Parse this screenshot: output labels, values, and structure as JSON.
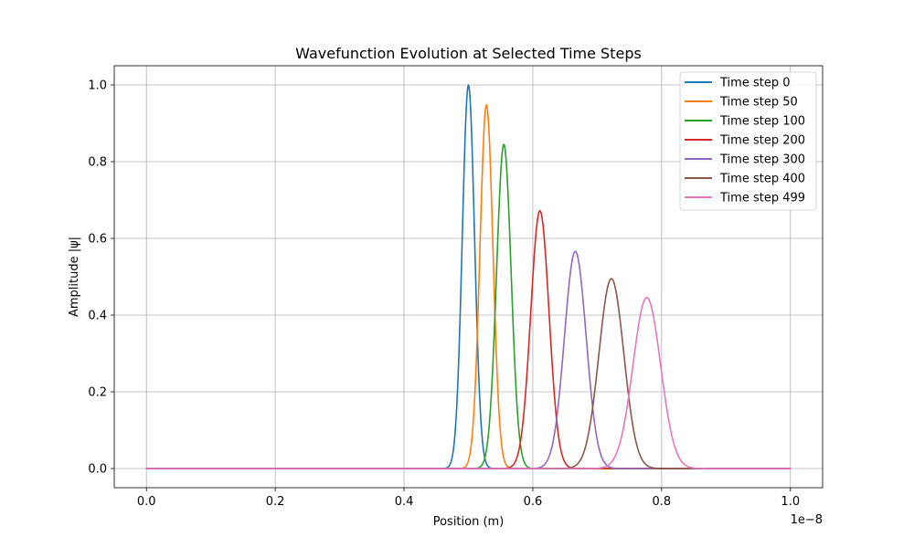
{
  "chart_data": {
    "type": "line",
    "title": "Wavefunction Evolution at Selected Time Steps",
    "xlabel": "Position (m)",
    "ylabel": "Amplitude |ψ|",
    "x_offset_label": "1e−8",
    "x_scale_exponent": -8,
    "xlim": [
      -0.05,
      1.05
    ],
    "ylim": [
      -0.05,
      1.05
    ],
    "x_ticks": [
      0.0,
      0.2,
      0.4,
      0.6,
      0.8,
      1.0
    ],
    "x_tick_labels": [
      "0.0",
      "0.2",
      "0.4",
      "0.6",
      "0.8",
      "1.0"
    ],
    "y_ticks": [
      0.0,
      0.2,
      0.4,
      0.6,
      0.8,
      1.0
    ],
    "y_tick_labels": [
      "0.0",
      "0.2",
      "0.4",
      "0.6",
      "0.8",
      "1.0"
    ],
    "x_range": [
      0.0,
      1.0
    ],
    "grid": true,
    "legend_position": "top-right",
    "series": [
      {
        "name": "Time step 0",
        "color": "#1f77b4",
        "peak_x": 0.5,
        "peak_y": 1.0,
        "sigma": 0.0095
      },
      {
        "name": "Time step 50",
        "color": "#ff7f0e",
        "peak_x": 0.528,
        "peak_y": 0.948,
        "sigma": 0.0101
      },
      {
        "name": "Time step 100",
        "color": "#2ca02c",
        "peak_x": 0.555,
        "peak_y": 0.845,
        "sigma": 0.0113
      },
      {
        "name": "Time step 200",
        "color": "#d62728",
        "peak_x": 0.611,
        "peak_y": 0.672,
        "sigma": 0.0142
      },
      {
        "name": "Time step 300",
        "color": "#9467bd",
        "peak_x": 0.666,
        "peak_y": 0.566,
        "sigma": 0.0169
      },
      {
        "name": "Time step 400",
        "color": "#8c564b",
        "peak_x": 0.722,
        "peak_y": 0.495,
        "sigma": 0.0193
      },
      {
        "name": "Time step 499",
        "color": "#e377c2",
        "peak_x": 0.777,
        "peak_y": 0.446,
        "sigma": 0.0214
      }
    ]
  }
}
